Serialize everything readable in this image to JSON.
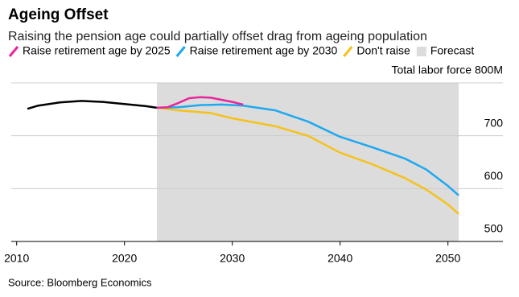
{
  "chart_data": {
    "type": "line",
    "title": "Ageing Offset",
    "subtitle": "Raising the pension age could partially offset drag from ageing population",
    "source": "Source: Bloomberg Economics",
    "xlim": [
      2009.5,
      2054.5
    ],
    "xticks": [
      2010,
      2020,
      2030,
      2040,
      2050
    ],
    "ylim": [
      500,
      800
    ],
    "yticks": [
      500,
      600,
      700,
      {
        "value": 800,
        "label": "Total labor force 800M"
      }
    ],
    "grid": true,
    "forecast": {
      "label": "Forecast",
      "start": 2023,
      "end": 2051,
      "color": "#dcdcdc"
    },
    "history": {
      "color": "#000000",
      "x": [
        2011,
        2012,
        2014,
        2016,
        2018,
        2020,
        2022,
        2023
      ],
      "values": [
        751,
        757,
        763,
        766,
        764,
        760,
        756,
        753
      ]
    },
    "series": [
      {
        "name": "Raise retirement age by 2025",
        "color": "#e8259c",
        "x": [
          2023,
          2024,
          2025,
          2026,
          2027,
          2028,
          2029,
          2030,
          2031
        ],
        "values": [
          753,
          754,
          762,
          771,
          773,
          772,
          768,
          764,
          759
        ]
      },
      {
        "name": "Raise retirement age by 2030",
        "color": "#1fa8f0",
        "x": [
          2023,
          2025,
          2027,
          2029,
          2031,
          2034,
          2037,
          2040,
          2043,
          2046,
          2048,
          2050,
          2051
        ],
        "values": [
          753,
          754,
          758,
          759,
          757,
          748,
          727,
          698,
          678,
          657,
          636,
          605,
          587
        ]
      },
      {
        "name": "Don't raise",
        "color": "#f5c21a",
        "x": [
          2023,
          2025,
          2028,
          2030,
          2034,
          2037,
          2040,
          2043,
          2046,
          2048,
          2050,
          2051
        ],
        "values": [
          753,
          748,
          743,
          733,
          718,
          700,
          668,
          646,
          620,
          598,
          570,
          552
        ]
      }
    ]
  }
}
